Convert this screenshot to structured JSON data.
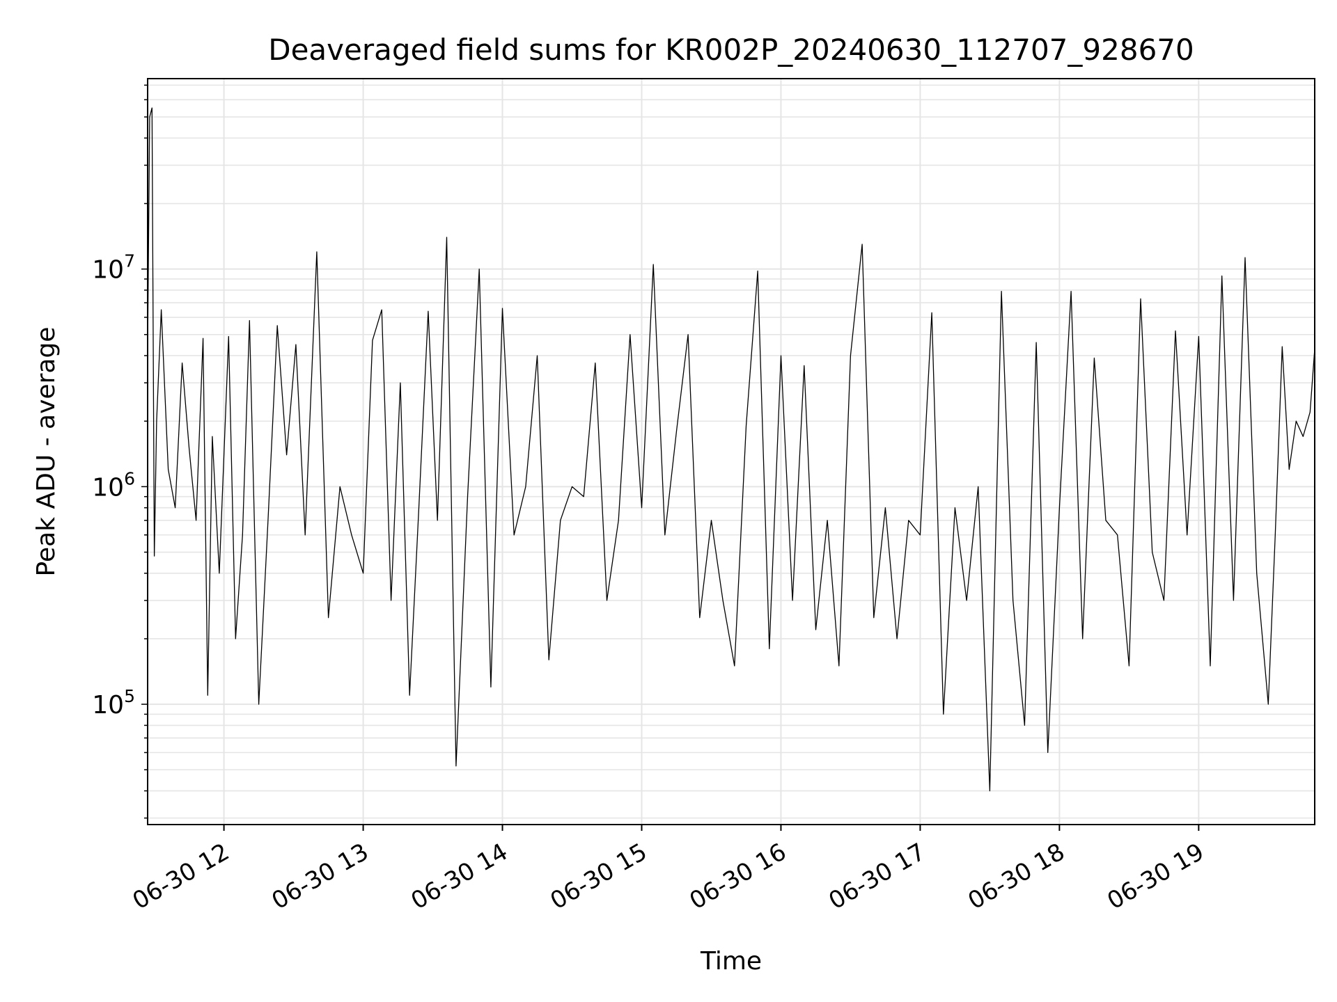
{
  "chart_data": {
    "type": "line",
    "title": "Deaveraged field sums for KR002P_20240630_112707_928670",
    "xlabel": "Time",
    "ylabel": "Peak ADU - average",
    "xlim": [
      "2024-06-30T11:27:07",
      "2024-06-30T19:50:00"
    ],
    "ylim": [
      28000,
      75000000
    ],
    "yscale": "log",
    "grid": true,
    "grid_color": "#e5e5e5",
    "line_color": "#000000",
    "x_ticks": [
      {
        "time": "2024-06-30T12:00",
        "label": "06-30 12"
      },
      {
        "time": "2024-06-30T13:00",
        "label": "06-30 13"
      },
      {
        "time": "2024-06-30T14:00",
        "label": "06-30 14"
      },
      {
        "time": "2024-06-30T15:00",
        "label": "06-30 15"
      },
      {
        "time": "2024-06-30T16:00",
        "label": "06-30 16"
      },
      {
        "time": "2024-06-30T17:00",
        "label": "06-30 17"
      },
      {
        "time": "2024-06-30T18:00",
        "label": "06-30 18"
      },
      {
        "time": "2024-06-30T19:00",
        "label": "06-30 19"
      }
    ],
    "y_ticks": [
      {
        "value": 100000,
        "base": "10",
        "exp": "5"
      },
      {
        "value": 1000000,
        "base": "10",
        "exp": "6"
      },
      {
        "value": 10000000,
        "base": "10",
        "exp": "7"
      }
    ],
    "series": [
      {
        "color": "#000000",
        "x": [
          "11:27",
          "11:28",
          "11:29",
          "11:30",
          "11:31",
          "11:33",
          "11:36",
          "11:39",
          "11:42",
          "11:45",
          "11:48",
          "11:51",
          "11:53",
          "11:55",
          "11:58",
          "12:02",
          "12:05",
          "12:08",
          "12:11",
          "12:15",
          "12:19",
          "12:23",
          "12:27",
          "12:31",
          "12:35",
          "12:40",
          "12:45",
          "12:50",
          "12:55",
          "13:00",
          "13:04",
          "13:08",
          "13:12",
          "13:16",
          "13:20",
          "13:24",
          "13:28",
          "13:32",
          "13:36",
          "13:40",
          "13:45",
          "13:50",
          "13:55",
          "14:00",
          "14:05",
          "14:10",
          "14:15",
          "14:20",
          "14:25",
          "14:30",
          "14:35",
          "14:40",
          "14:45",
          "14:50",
          "14:55",
          "15:00",
          "15:05",
          "15:10",
          "15:15",
          "15:20",
          "15:25",
          "15:30",
          "15:35",
          "15:40",
          "15:45",
          "15:50",
          "15:55",
          "16:00",
          "16:05",
          "16:10",
          "16:15",
          "16:20",
          "16:25",
          "16:30",
          "16:35",
          "16:40",
          "16:45",
          "16:50",
          "16:55",
          "17:00",
          "17:05",
          "17:10",
          "17:15",
          "17:20",
          "17:25",
          "17:30",
          "17:35",
          "17:40",
          "17:45",
          "17:50",
          "17:55",
          "18:00",
          "18:05",
          "18:10",
          "18:15",
          "18:20",
          "18:25",
          "18:30",
          "18:35",
          "18:40",
          "18:45",
          "18:50",
          "18:55",
          "19:00",
          "19:05",
          "19:10",
          "19:15",
          "19:20",
          "19:25",
          "19:30",
          "19:33",
          "19:36",
          "19:39",
          "19:42",
          "19:45",
          "19:48",
          "19:50"
        ],
        "y": [
          3000000,
          50000000,
          55000000,
          480000,
          2000000,
          6500000,
          1200000,
          800000,
          3700000,
          1500000,
          700000,
          4800000,
          110000,
          1700000,
          400000,
          4900000,
          200000,
          600000,
          5800000,
          100000,
          700000,
          5500000,
          1400000,
          4500000,
          600000,
          12000000,
          250000,
          1000000,
          600000,
          400000,
          4700000,
          6500000,
          300000,
          3000000,
          110000,
          800000,
          6400000,
          700000,
          14000000,
          52000,
          900000,
          10000000,
          120000,
          6600000,
          600000,
          1000000,
          4000000,
          160000,
          700000,
          1000000,
          900000,
          3700000,
          300000,
          700000,
          5000000,
          800000,
          10500000,
          600000,
          1800000,
          5000000,
          250000,
          700000,
          300000,
          150000,
          1900000,
          9800000,
          180000,
          4000000,
          300000,
          3600000,
          220000,
          700000,
          150000,
          4000000,
          13000000,
          250000,
          800000,
          200000,
          700000,
          600000,
          6300000,
          90000,
          800000,
          300000,
          1000000,
          40000,
          7900000,
          300000,
          80000,
          4600000,
          60000,
          800000,
          7900000,
          200000,
          3900000,
          700000,
          600000,
          150000,
          7300000,
          500000,
          300000,
          5200000,
          600000,
          4900000,
          150000,
          9300000,
          300000,
          11300000,
          400000,
          100000,
          600000,
          4400000,
          1200000,
          2000000,
          1700000,
          2200000,
          4300000
        ]
      }
    ]
  }
}
